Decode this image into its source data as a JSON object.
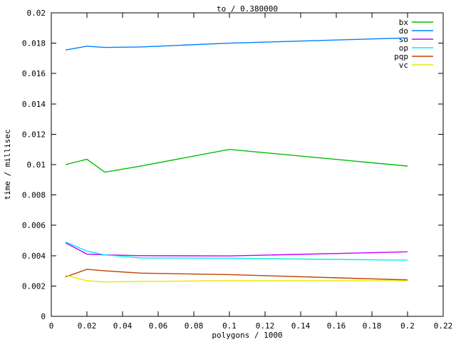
{
  "chart_data": {
    "type": "line",
    "title": "to / 0.380000",
    "xlabel": "polygons / 1000",
    "ylabel": "time / millisec",
    "xlim": [
      0,
      0.22
    ],
    "ylim": [
      0,
      0.02
    ],
    "xtick_values": [
      0,
      0.02,
      0.04,
      0.06,
      0.08,
      0.1,
      0.12,
      0.14,
      0.16,
      0.18,
      0.2,
      0.22
    ],
    "xtick_labels": [
      "0",
      "0.02",
      "0.04",
      "0.06",
      "0.08",
      "0.1",
      "0.12",
      "0.14",
      "0.16",
      "0.18",
      "0.2",
      "0.22"
    ],
    "ytick_values": [
      0,
      0.002,
      0.004,
      0.006,
      0.008,
      0.01,
      0.012,
      0.014,
      0.016,
      0.018,
      0.02
    ],
    "ytick_labels": [
      "0",
      "0.002",
      "0.004",
      "0.006",
      "0.008",
      "0.01",
      "0.012",
      "0.014",
      "0.016",
      "0.018",
      "0.02"
    ],
    "grid": false,
    "legend_position": "top-right-inside",
    "background_color": "#ffffff",
    "border_color": "#000000",
    "x": [
      0.008,
      0.02,
      0.03,
      0.05,
      0.1,
      0.2
    ],
    "series": [
      {
        "name": "bx",
        "color": "#00C000",
        "values": [
          0.01,
          0.01035,
          0.0095,
          0.0099,
          0.011,
          0.0099
        ]
      },
      {
        "name": "do",
        "color": "#0080FF",
        "values": [
          0.01755,
          0.0178,
          0.01772,
          0.01775,
          0.018,
          0.01835
        ]
      },
      {
        "name": "so",
        "color": "#C000FF",
        "values": [
          0.00485,
          0.0041,
          0.00405,
          0.004,
          0.00398,
          0.00425
        ]
      },
      {
        "name": "op",
        "color": "#00EEEE",
        "values": [
          0.0049,
          0.0043,
          0.00405,
          0.00385,
          0.00383,
          0.0037
        ]
      },
      {
        "name": "pqp",
        "color": "#C04000",
        "values": [
          0.0026,
          0.0031,
          0.003,
          0.00285,
          0.00275,
          0.0024
        ]
      },
      {
        "name": "vc",
        "color": "#E8E800",
        "values": [
          0.0027,
          0.00235,
          0.00227,
          0.0023,
          0.00235,
          0.00235
        ]
      }
    ]
  }
}
